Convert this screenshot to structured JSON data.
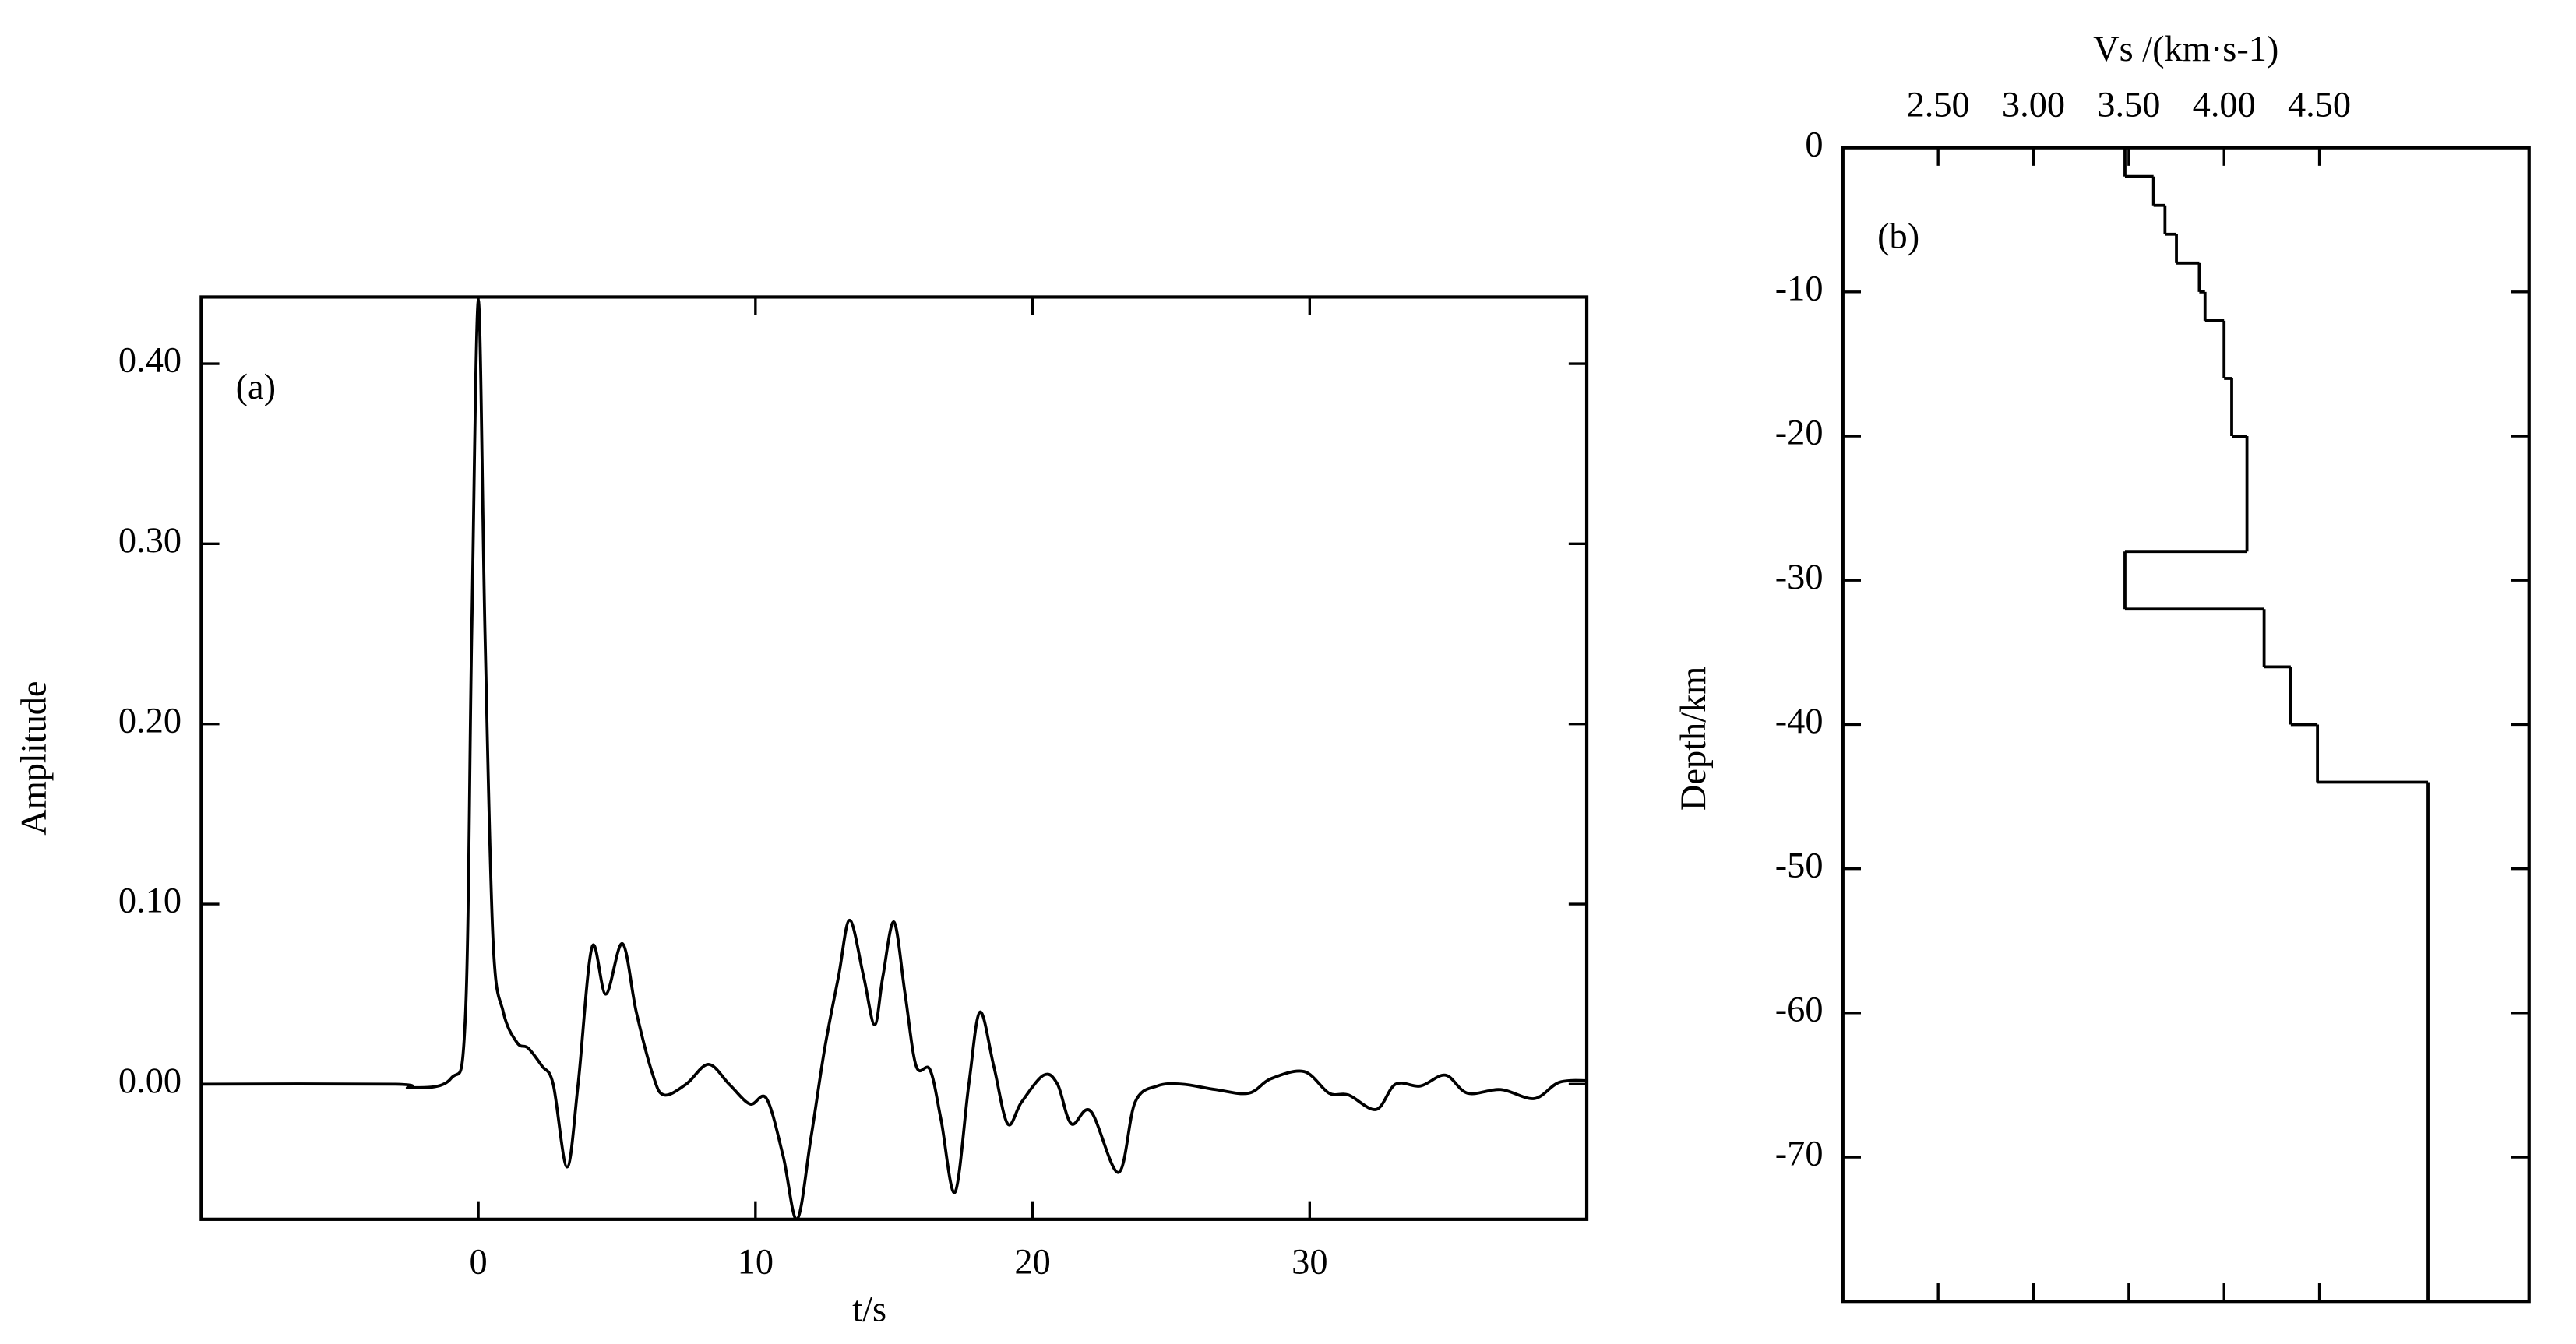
{
  "chart_data": [
    {
      "type": "line",
      "xlabel": "t/s",
      "ylabel": "Amplitude",
      "annotation": "(a)",
      "x": [
        -10,
        -3,
        -2.5,
        -1,
        -0.47,
        -0.24,
        0,
        0.24,
        0.53,
        0.9,
        1.4,
        1.8,
        2.3,
        2.7,
        3.2,
        3.6,
        4.1,
        4.6,
        5.2,
        5.7,
        6.3,
        6.7,
        7.5,
        8.3,
        9.05,
        9.8,
        10.4,
        11,
        11.5,
        12,
        12.5,
        13,
        13.4,
        13.9,
        14.3,
        14.6,
        15,
        15.4,
        15.8,
        16.3,
        16.7,
        17.2,
        17.7,
        18.1,
        18.6,
        19.1,
        19.6,
        20.4,
        20.9,
        21.4,
        22.1,
        23.1,
        23.7,
        24.5,
        25.4,
        26.6,
        27.8,
        28.6,
        29.8,
        30.7,
        31.4,
        32.4,
        33.1,
        34,
        34.9,
        35.7,
        36.9,
        38.1,
        39,
        40
      ],
      "values": [
        0,
        0,
        -0.002,
        0.003,
        0.037,
        0.25,
        0.435,
        0.25,
        0.08,
        0.04,
        0.023,
        0.02,
        0.01,
        0,
        -0.046,
        0,
        0.076,
        0.05,
        0.078,
        0.04,
        0.005,
        -0.006,
        0,
        0.011,
        0,
        -0.011,
        -0.008,
        -0.04,
        -0.075,
        -0.03,
        0.02,
        0.06,
        0.091,
        0.06,
        0.033,
        0.06,
        0.09,
        0.05,
        0.01,
        0.008,
        -0.02,
        -0.06,
        0,
        0.04,
        0.01,
        -0.022,
        -0.01,
        0.005,
        0,
        -0.022,
        -0.015,
        -0.049,
        -0.01,
        -0.001,
        0,
        -0.003,
        -0.005,
        0.003,
        0.007,
        -0.005,
        -0.006,
        -0.014,
        0,
        -0.001,
        0.005,
        -0.005,
        -0.003,
        -0.008,
        0.001,
        0.002
      ],
      "color": "#000000",
      "xlim": [
        -10,
        40
      ],
      "xticks": [
        0,
        10,
        20,
        30
      ],
      "ylim": [
        -0.075,
        0.437
      ],
      "yticks": [
        {
          "value": 0,
          "label": "0.00"
        },
        {
          "value": 0.1,
          "label": "0.10"
        },
        {
          "value": 0.2,
          "label": "0.20"
        },
        {
          "value": 0.3,
          "label": "0.30"
        },
        {
          "value": 0.4,
          "label": "0.40"
        }
      ],
      "grid": false
    },
    {
      "type": "step",
      "xlabel": "Vs /(km·s-1)",
      "ylabel": "Depth/km",
      "annotation": "(b)",
      "depth_bounds": [
        0,
        -2,
        -4,
        -6,
        -8,
        -10,
        -12,
        -16,
        -20,
        -28,
        -32,
        -36,
        -40,
        -44,
        -80
      ],
      "values": [
        3.48,
        3.63,
        3.69,
        3.75,
        3.87,
        3.9,
        4.0,
        4.04,
        4.12,
        3.48,
        4.21,
        4.35,
        4.49,
        5.07
      ],
      "color": "#000000",
      "xlim": [
        2.0,
        5.6
      ],
      "xticks": [
        {
          "value": 2.5,
          "label": "2.50"
        },
        {
          "value": 3.0,
          "label": "3.00"
        },
        {
          "value": 3.5,
          "label": "3.50"
        },
        {
          "value": 4.0,
          "label": "4.00"
        },
        {
          "value": 4.5,
          "label": "4.50"
        }
      ],
      "ylim": [
        -80,
        0
      ],
      "yticks": [
        0,
        -10,
        -20,
        -30,
        -40,
        -50,
        -60,
        -70
      ],
      "grid": false
    }
  ]
}
